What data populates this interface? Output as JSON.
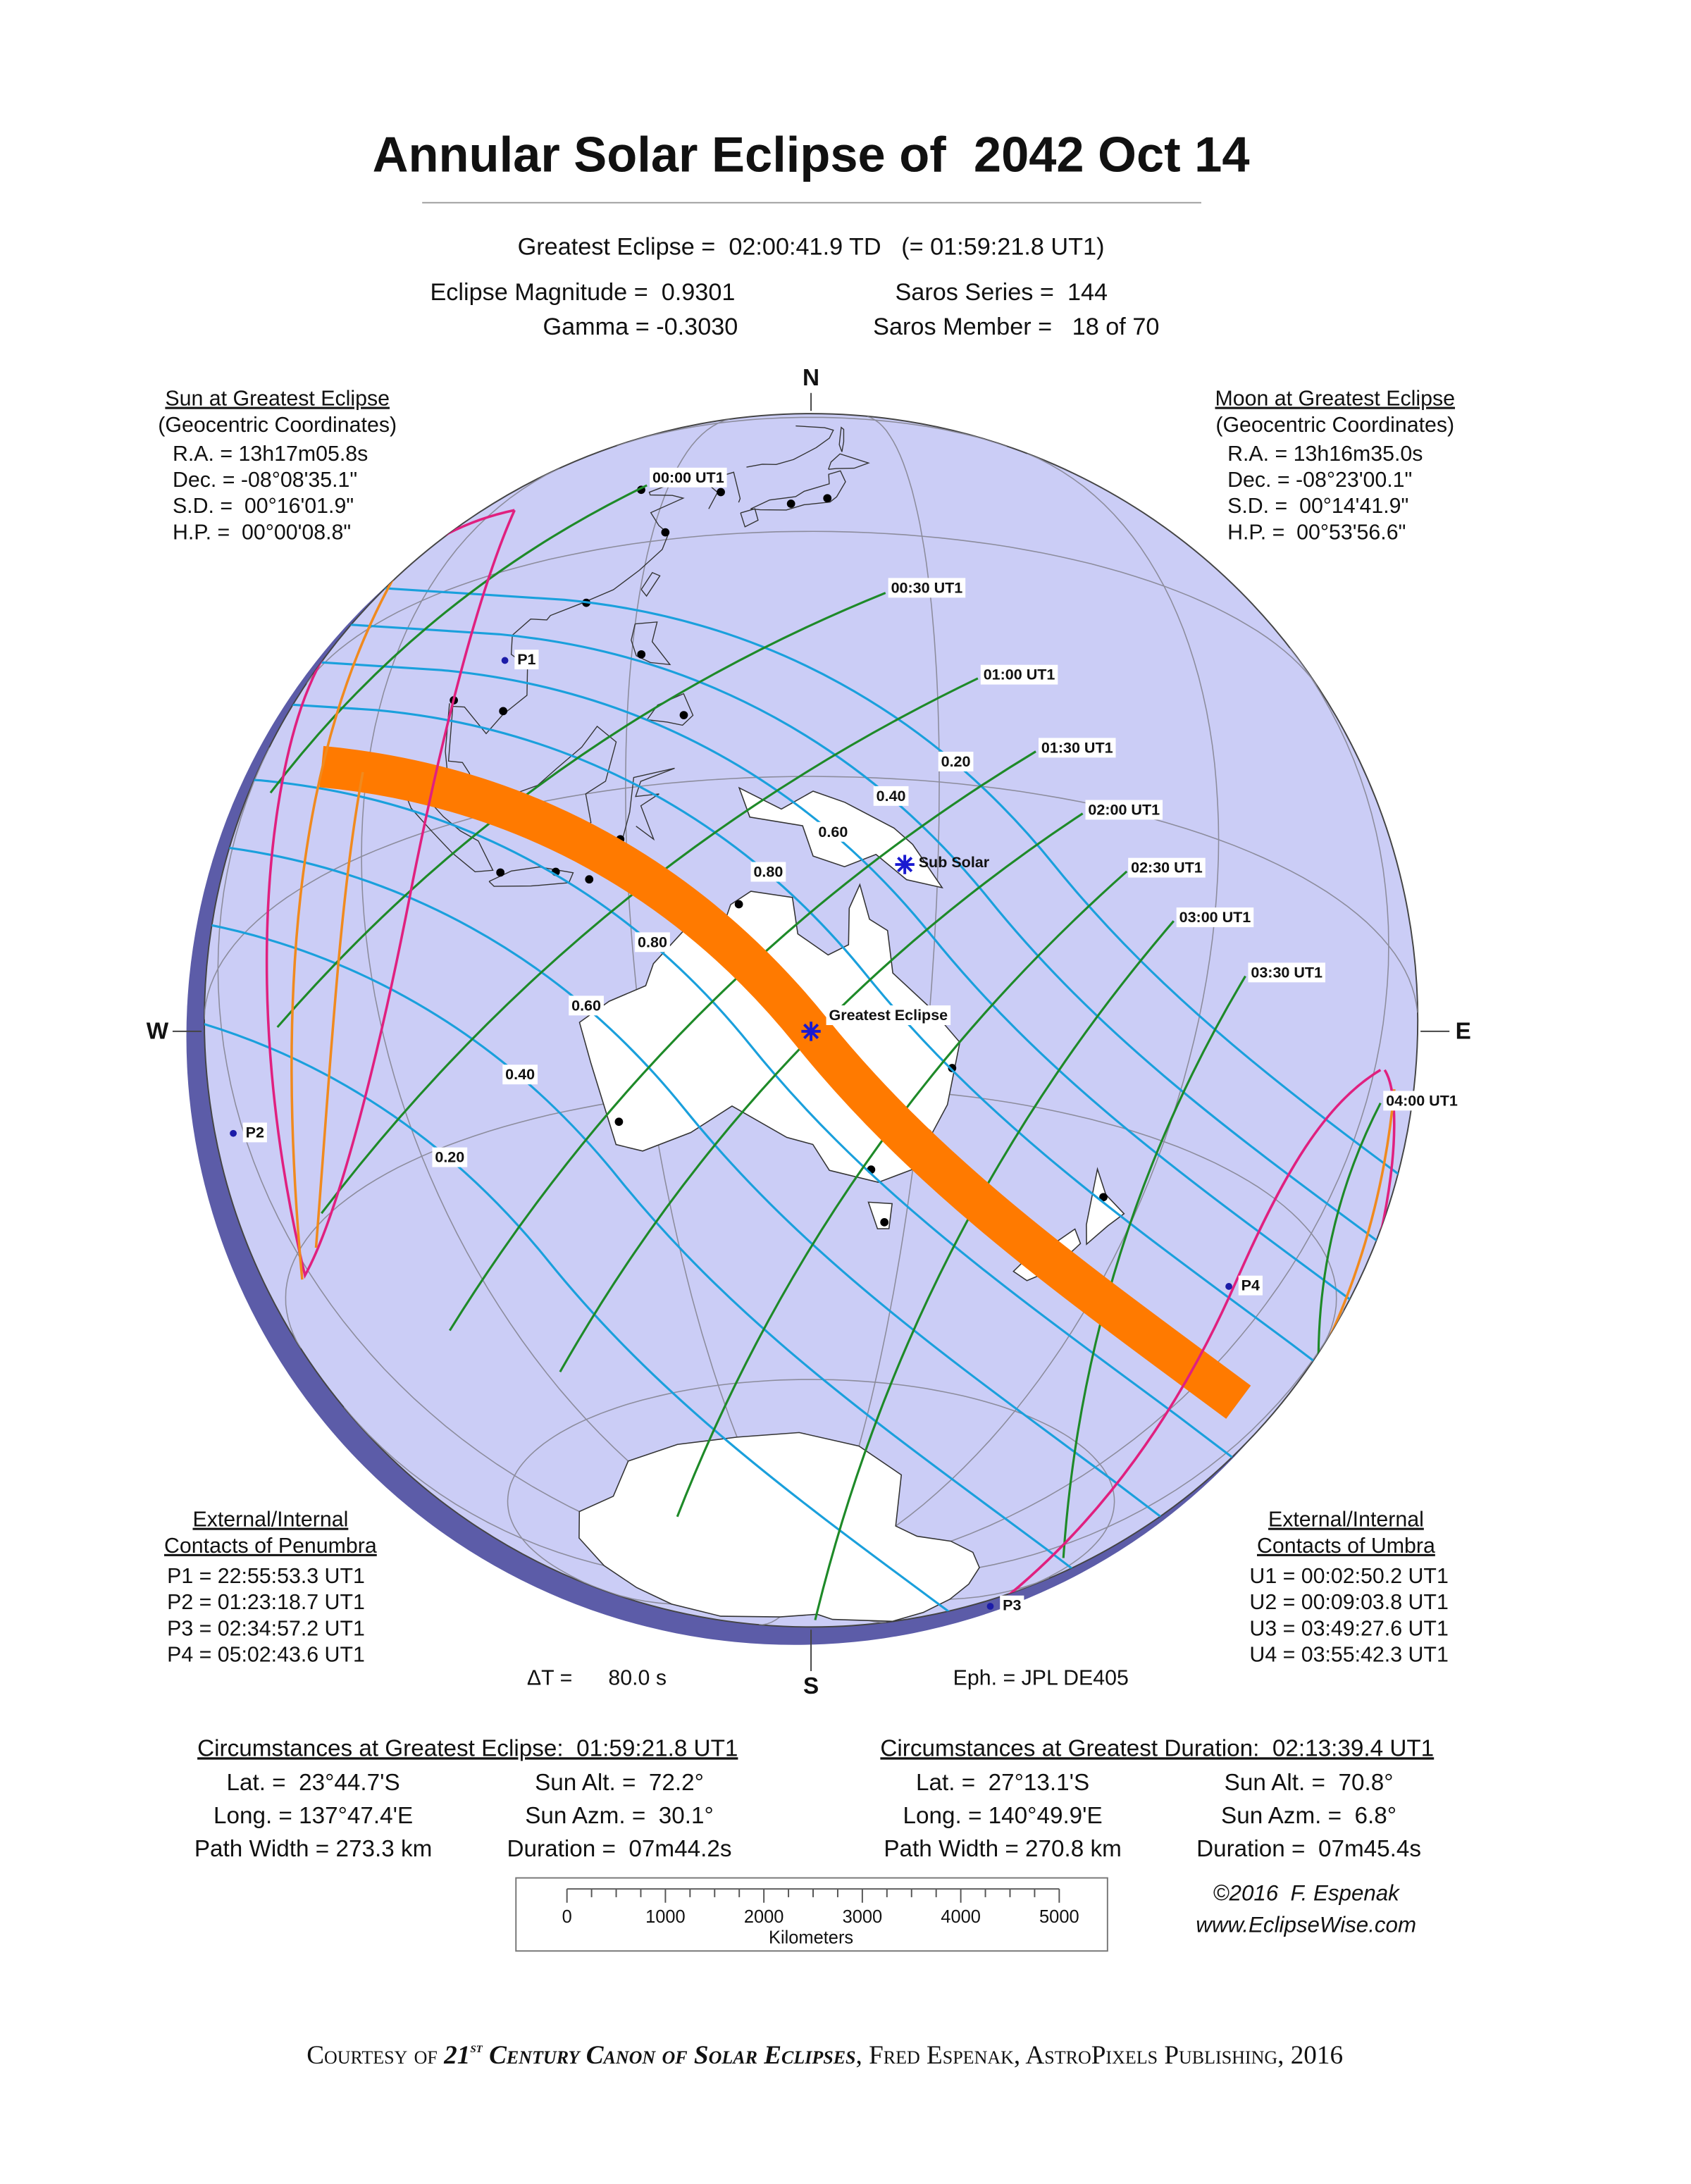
{
  "header": {
    "title": "Annular Solar Eclipse of  2042 Oct 14",
    "greatest_eclipse": "Greatest Eclipse =  02:00:41.9 TD   (= 01:59:21.8 UT1)",
    "eclipse_magnitude": "Eclipse Magnitude =  0.9301",
    "gamma": "Gamma = -0.3030",
    "saros_series": "Saros Series =  144",
    "saros_member": "Saros Member =   18 of 70"
  },
  "compass": {
    "north": "N",
    "west": "W",
    "east": "E",
    "south": "S"
  },
  "sun": {
    "heading": "Sun at Greatest Eclipse",
    "subheading": "(Geocentric Coordinates)",
    "lines": [
      "R.A. = 13h17m05.8s",
      "Dec. = -08°08'35.1\"",
      "S.D. =  00°16'01.9\"",
      "H.P. =  00°00'08.8\""
    ]
  },
  "moon": {
    "heading": "Moon at Greatest Eclipse",
    "subheading": "(Geocentric Coordinates)",
    "lines": [
      "R.A. = 13h16m35.0s",
      "Dec. = -08°23'00.1\"",
      "S.D. =  00°14'41.9\"",
      "H.P. =  00°53'56.6\""
    ]
  },
  "penumbra_contacts": {
    "heading": [
      "External/Internal",
      "Contacts of Penumbra"
    ],
    "lines": [
      "P1 = 22:55:53.3 UT1",
      "P2 = 01:23:18.7 UT1",
      "P3 = 02:34:57.2 UT1",
      "P4 = 05:02:43.6 UT1"
    ]
  },
  "umbra_contacts": {
    "heading": [
      "External/Internal",
      "Contacts of Umbra"
    ],
    "lines": [
      "U1 = 00:02:50.2 UT1",
      "U2 = 00:09:03.8 UT1",
      "U3 = 03:49:27.6 UT1",
      "U4 = 03:55:42.3 UT1"
    ]
  },
  "map_labels": {
    "times": [
      "00:00 UT1",
      "00:30 UT1",
      "01:00 UT1",
      "01:30 UT1",
      "02:00 UT1",
      "02:30 UT1",
      "03:00 UT1",
      "03:30 UT1",
      "04:00 UT1"
    ],
    "magnitudes": [
      "0.80",
      "0.60",
      "0.40",
      "0.20",
      "0.80",
      "0.60",
      "0.40",
      "0.20"
    ],
    "sub_solar": "Sub Solar",
    "greatest_eclipse": "Greatest Eclipse",
    "contacts": [
      "P1",
      "P2",
      "P3",
      "P4"
    ]
  },
  "delta_t": {
    "label": "ΔT =",
    "value": "80.0 s"
  },
  "ephemeris": "Eph. = JPL DE405",
  "circumstances": [
    {
      "heading": "Circumstances at Greatest Eclipse:  01:59:21.8 UT1",
      "rows": [
        [
          "Lat. =  23°44.7'S",
          "Sun Alt. =  72.2°"
        ],
        [
          "Long. = 137°47.4'E",
          "Sun Azm. =  30.1°"
        ],
        [
          "Path Width = 273.3 km",
          "Duration =  07m44.2s"
        ]
      ]
    },
    {
      "heading": "Circumstances at Greatest Duration:  02:13:39.4 UT1",
      "rows": [
        [
          "Lat. =  27°13.1'S",
          "Sun Alt. =  70.8°"
        ],
        [
          "Long. = 140°49.9'E",
          "Sun Azm. =  6.8°"
        ],
        [
          "Path Width = 270.8 km",
          "Duration =  07m45.4s"
        ]
      ]
    }
  ],
  "scale": {
    "ticks": [
      0,
      1000,
      2000,
      3000,
      4000,
      5000
    ],
    "unit": "Kilometers"
  },
  "credit": [
    "©2016  F. Espenak",
    "www.EclipseWise.com"
  ],
  "footer": [
    "Courtesy of ",
    "21",
    "st",
    " Century Canon of Solar Eclipses",
    ", Fred Espenak, AstroPixels Publishing, 2016"
  ]
}
